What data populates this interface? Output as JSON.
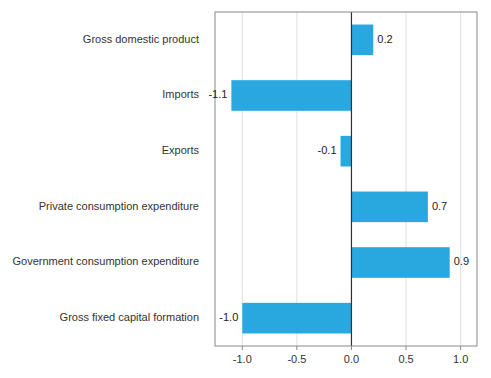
{
  "chart_data": {
    "type": "bar",
    "orientation": "horizontal",
    "categories": [
      "Gross fixed capital formation",
      "Government consumption expenditure",
      "Private consumption expenditure",
      "Exports",
      "Imports",
      "Gross domestic product"
    ],
    "values": [
      -1.0,
      0.9,
      0.7,
      -0.1,
      -1.1,
      0.2
    ],
    "value_labels": [
      "-1.0",
      "0.9",
      "0.7",
      "-0.1",
      "-1.1",
      "0.2"
    ],
    "data_labels": true,
    "color": "#29a8e0",
    "xlim": [
      -1.25,
      1.15
    ],
    "xticks": [
      {
        "value": -1.0,
        "label": "-1.0"
      },
      {
        "value": -0.5,
        "label": "-0.5"
      },
      {
        "value": 0.0,
        "label": "0.0"
      },
      {
        "value": 0.5,
        "label": "0.5"
      },
      {
        "value": 1.0,
        "label": "1.0"
      }
    ],
    "grid": true
  }
}
